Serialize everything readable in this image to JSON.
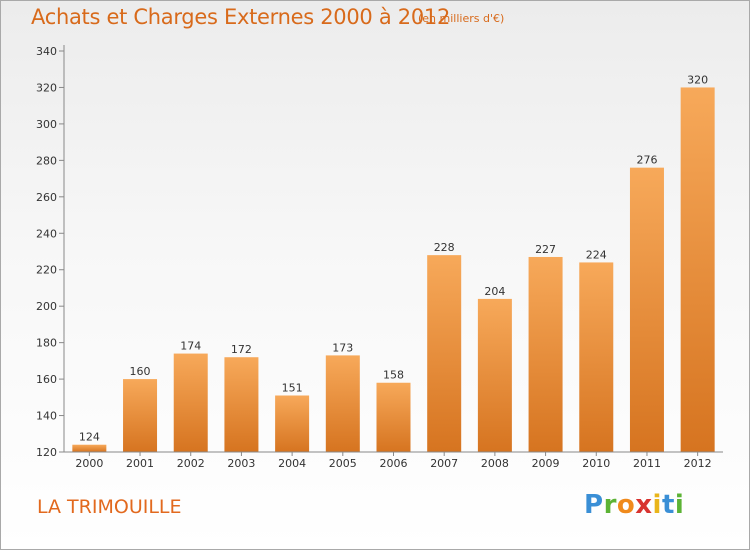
{
  "header": {
    "title": "Achats et Charges Externes 2000 à 2012",
    "unit": "(en milliers d'€)"
  },
  "footer": {
    "commune": "LA TRIMOUILLE",
    "brand": {
      "letters": [
        "P",
        "r",
        "o",
        "x",
        "i",
        "t",
        "i"
      ],
      "colors": [
        "#3a8fd6",
        "#5cb335",
        "#f08a1c",
        "#d8332f",
        "#e9b51a",
        "#3a8fd6",
        "#5cb335"
      ]
    }
  },
  "chart_data": {
    "type": "bar",
    "title": "Achats et Charges Externes 2000 à 2012",
    "subtitle": "(en milliers d'€)",
    "categories": [
      "2000",
      "2001",
      "2002",
      "2003",
      "2004",
      "2005",
      "2006",
      "2007",
      "2008",
      "2009",
      "2010",
      "2011",
      "2012"
    ],
    "values": [
      124,
      160,
      174,
      172,
      151,
      173,
      158,
      228,
      204,
      227,
      224,
      276,
      320
    ],
    "data_labels": [
      "124",
      "160",
      "174",
      "172",
      "151",
      "173",
      "158",
      "228",
      "204",
      "227",
      "224",
      "276",
      "320"
    ],
    "yticks": [
      "120",
      "140",
      "160",
      "180",
      "200",
      "220",
      "240",
      "260",
      "280",
      "300",
      "320",
      "340"
    ],
    "ylim": [
      120,
      340
    ],
    "xlabel": "",
    "ylabel": "",
    "grid": false,
    "legend": "none",
    "colors": {
      "bar_light": "#f7a95a",
      "bar_dark": "#d67420",
      "axis": "#888888",
      "text": "#333333",
      "accent": "#d86a1b"
    }
  }
}
